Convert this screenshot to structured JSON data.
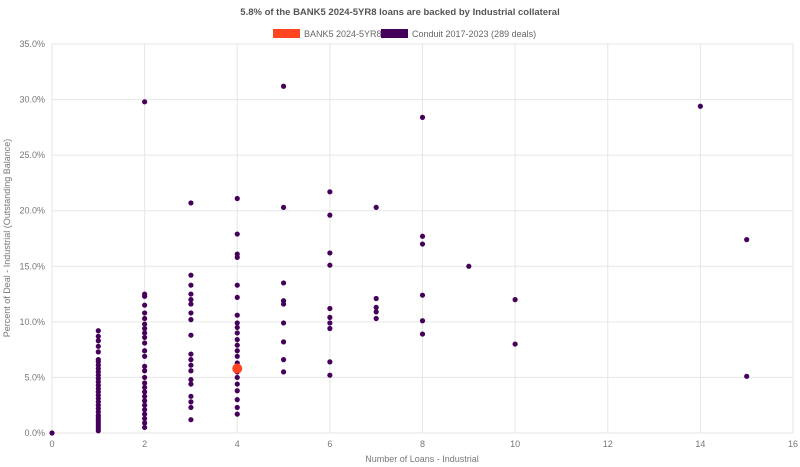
{
  "chart_data": {
    "type": "scatter",
    "title": "5.8% of the BANK5 2024-5YR8 loans are backed by Industrial collateral",
    "xlabel": "Number of Loans - Industrial",
    "ylabel": "Percent of Deal - Industrial (Outstanding Balance)",
    "xlim": [
      0,
      16
    ],
    "ylim": [
      0,
      35
    ],
    "x_ticks": [
      "0",
      "2",
      "4",
      "6",
      "8",
      "10",
      "12",
      "14",
      "16"
    ],
    "y_ticks": [
      "0.0%",
      "5.0%",
      "10.0%",
      "15.0%",
      "20.0%",
      "25.0%",
      "30.0%",
      "35.0%"
    ],
    "grid": true,
    "legend_position": "top",
    "series": [
      {
        "name": "BANK5 2024-5YR8",
        "color": "#ff4422",
        "points": [
          [
            4,
            5.8
          ]
        ]
      },
      {
        "name": "Conduit 2017-2023 (289 deals)",
        "color": "#44005a",
        "points": [
          [
            0,
            0.0
          ],
          [
            1,
            0.2
          ],
          [
            1,
            0.4
          ],
          [
            1,
            0.6
          ],
          [
            1,
            0.8
          ],
          [
            1,
            1.0
          ],
          [
            1,
            1.2
          ],
          [
            1,
            1.4
          ],
          [
            1,
            1.6
          ],
          [
            1,
            1.9
          ],
          [
            1,
            2.2
          ],
          [
            1,
            2.5
          ],
          [
            1,
            2.8
          ],
          [
            1,
            3.1
          ],
          [
            1,
            3.4
          ],
          [
            1,
            3.7
          ],
          [
            1,
            4.0
          ],
          [
            1,
            4.3
          ],
          [
            1,
            4.6
          ],
          [
            1,
            4.9
          ],
          [
            1,
            5.2
          ],
          [
            1,
            5.5
          ],
          [
            1,
            5.8
          ],
          [
            1,
            6.1
          ],
          [
            1,
            6.4
          ],
          [
            1,
            6.6
          ],
          [
            1,
            7.3
          ],
          [
            1,
            7.8
          ],
          [
            1,
            8.3
          ],
          [
            1,
            8.7
          ],
          [
            1,
            9.2
          ],
          [
            2,
            0.5
          ],
          [
            2,
            0.9
          ],
          [
            2,
            1.3
          ],
          [
            2,
            1.7
          ],
          [
            2,
            2.1
          ],
          [
            2,
            2.5
          ],
          [
            2,
            2.9
          ],
          [
            2,
            3.3
          ],
          [
            2,
            3.7
          ],
          [
            2,
            4.1
          ],
          [
            2,
            4.5
          ],
          [
            2,
            5.0
          ],
          [
            2,
            5.6
          ],
          [
            2,
            6.0
          ],
          [
            2,
            6.9
          ],
          [
            2,
            7.4
          ],
          [
            2,
            8.1
          ],
          [
            2,
            8.6
          ],
          [
            2,
            9.0
          ],
          [
            2,
            9.4
          ],
          [
            2,
            9.8
          ],
          [
            2,
            10.3
          ],
          [
            2,
            10.8
          ],
          [
            2,
            11.5
          ],
          [
            2,
            12.3
          ],
          [
            2,
            12.5
          ],
          [
            2,
            29.8
          ],
          [
            3,
            1.2
          ],
          [
            3,
            2.3
          ],
          [
            3,
            2.8
          ],
          [
            3,
            3.3
          ],
          [
            3,
            4.4
          ],
          [
            3,
            4.8
          ],
          [
            3,
            5.6
          ],
          [
            3,
            6.1
          ],
          [
            3,
            6.6
          ],
          [
            3,
            7.1
          ],
          [
            3,
            8.8
          ],
          [
            3,
            10.2
          ],
          [
            3,
            10.8
          ],
          [
            3,
            11.6
          ],
          [
            3,
            12.0
          ],
          [
            3,
            12.5
          ],
          [
            3,
            13.3
          ],
          [
            3,
            14.2
          ],
          [
            3,
            20.7
          ],
          [
            4,
            1.7
          ],
          [
            4,
            2.3
          ],
          [
            4,
            3.0
          ],
          [
            4,
            3.8
          ],
          [
            4,
            4.4
          ],
          [
            4,
            5.0
          ],
          [
            4,
            5.5
          ],
          [
            4,
            6.3
          ],
          [
            4,
            6.9
          ],
          [
            4,
            7.4
          ],
          [
            4,
            7.9
          ],
          [
            4,
            8.4
          ],
          [
            4,
            9.0
          ],
          [
            4,
            9.5
          ],
          [
            4,
            9.9
          ],
          [
            4,
            10.6
          ],
          [
            4,
            12.2
          ],
          [
            4,
            13.3
          ],
          [
            4,
            15.8
          ],
          [
            4,
            16.1
          ],
          [
            4,
            17.9
          ],
          [
            4,
            21.1
          ],
          [
            5,
            5.5
          ],
          [
            5,
            6.6
          ],
          [
            5,
            8.2
          ],
          [
            5,
            9.9
          ],
          [
            5,
            11.6
          ],
          [
            5,
            11.9
          ],
          [
            5,
            13.5
          ],
          [
            5,
            20.3
          ],
          [
            5,
            31.2
          ],
          [
            6,
            5.2
          ],
          [
            6,
            6.4
          ],
          [
            6,
            9.4
          ],
          [
            6,
            9.9
          ],
          [
            6,
            10.4
          ],
          [
            6,
            11.2
          ],
          [
            6,
            15.1
          ],
          [
            6,
            16.2
          ],
          [
            6,
            19.6
          ],
          [
            6,
            21.7
          ],
          [
            7,
            10.3
          ],
          [
            7,
            10.9
          ],
          [
            7,
            11.3
          ],
          [
            7,
            12.1
          ],
          [
            7,
            20.3
          ],
          [
            8,
            8.9
          ],
          [
            8,
            10.1
          ],
          [
            8,
            12.4
          ],
          [
            8,
            17.0
          ],
          [
            8,
            17.7
          ],
          [
            8,
            28.4
          ],
          [
            9,
            15.0
          ],
          [
            10,
            8.0
          ],
          [
            10,
            12.0
          ],
          [
            14,
            29.4
          ],
          [
            15,
            5.1
          ],
          [
            15,
            17.4
          ]
        ]
      }
    ]
  }
}
